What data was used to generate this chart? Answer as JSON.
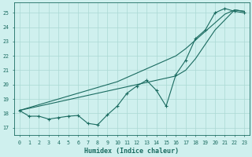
{
  "xlabel": "Humidex (Indice chaleur)",
  "xlim": [
    -0.5,
    23.5
  ],
  "ylim": [
    16.5,
    25.7
  ],
  "yticks": [
    17,
    18,
    19,
    20,
    21,
    22,
    23,
    24,
    25
  ],
  "xticks": [
    0,
    1,
    2,
    3,
    4,
    5,
    6,
    7,
    8,
    9,
    10,
    11,
    12,
    13,
    14,
    15,
    16,
    17,
    18,
    19,
    20,
    21,
    22,
    23
  ],
  "background_color": "#cff0ee",
  "grid_color": "#aad8d4",
  "line_color": "#1a6b60",
  "line1_markers": [
    18.2,
    17.8,
    17.8,
    17.6,
    17.7,
    17.8,
    17.85,
    17.3,
    17.2,
    17.9,
    18.5,
    19.4,
    19.9,
    20.3,
    19.6,
    18.5,
    20.7,
    21.7,
    23.2,
    23.8,
    25.0,
    25.3,
    25.1,
    25.0
  ],
  "line2_smooth": [
    18.2,
    18.35,
    18.5,
    18.65,
    18.8,
    18.95,
    19.1,
    19.25,
    19.4,
    19.55,
    19.7,
    19.85,
    20.0,
    20.15,
    20.3,
    20.45,
    20.6,
    21.0,
    21.8,
    22.8,
    23.8,
    24.5,
    25.2,
    25.1
  ],
  "line3_smooth": [
    18.2,
    18.4,
    18.6,
    18.8,
    19.0,
    19.2,
    19.4,
    19.6,
    19.8,
    20.0,
    20.2,
    20.5,
    20.8,
    21.1,
    21.4,
    21.7,
    22.0,
    22.5,
    23.1,
    23.7,
    24.3,
    24.9,
    25.2,
    25.1
  ]
}
